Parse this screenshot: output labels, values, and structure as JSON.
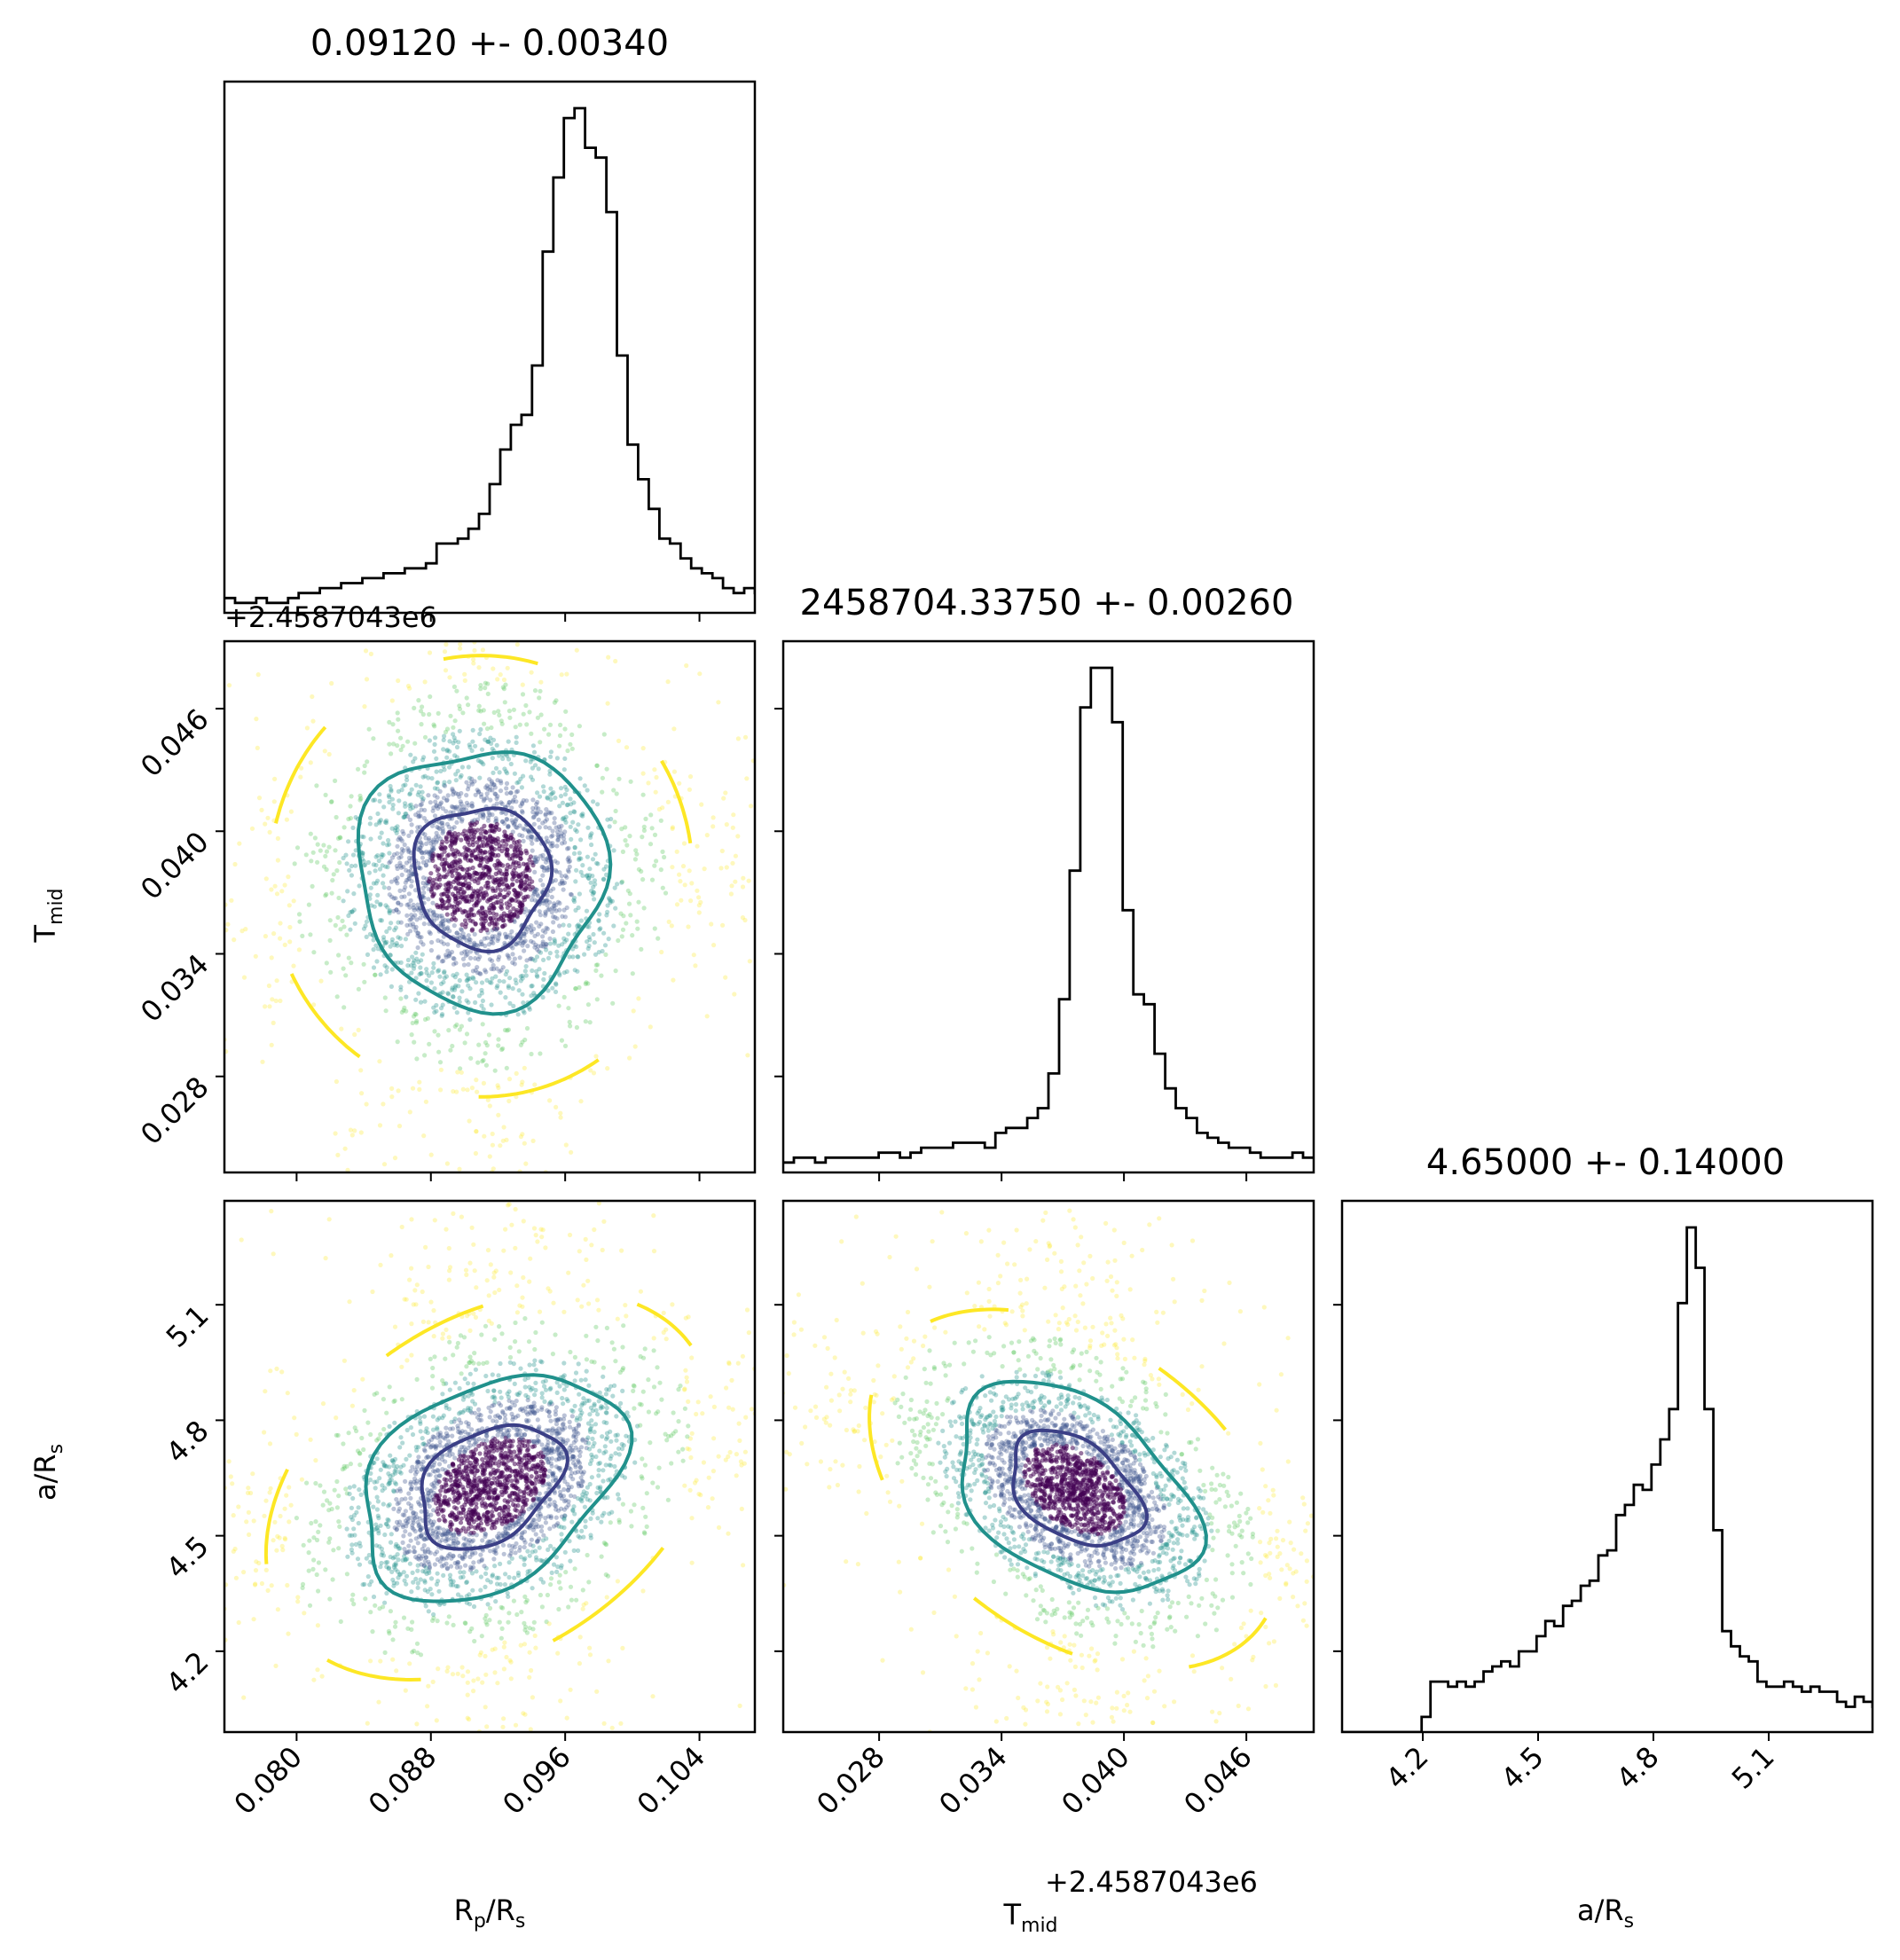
{
  "chart_data": {
    "type": "corner",
    "parameters": [
      {
        "key": "rp",
        "label": "R_p/R_s",
        "display_label_main": "R",
        "display_label_sub": "p",
        "display_label_tail": "/R",
        "display_label_sub2": "s"
      },
      {
        "key": "tmid",
        "label": "T_mid",
        "display_label_main": "T",
        "display_label_sub": "mid",
        "display_label_tail": "",
        "display_label_sub2": ""
      },
      {
        "key": "ars",
        "label": "a/R_s",
        "display_label_main": "a/R",
        "display_label_sub": "s",
        "display_label_tail": "",
        "display_label_sub2": ""
      }
    ],
    "titles": [
      "0.09120 +- 0.00340",
      "2458704.33750 +- 0.00260",
      "4.65000 +- 0.14000"
    ],
    "offset_text": "+2.4587043e6",
    "ranges": {
      "rp": [
        0.0757,
        0.1073
      ],
      "tmid": [
        0.0233,
        0.0493
      ],
      "ars": [
        3.99,
        5.37
      ]
    },
    "ticks": {
      "rp": [
        "0.080",
        "0.088",
        "0.096",
        "0.104"
      ],
      "tmid": [
        "0.028",
        "0.034",
        "0.040",
        "0.046"
      ],
      "ars": [
        "4.2",
        "4.5",
        "4.8",
        "5.1"
      ]
    },
    "tick_values": {
      "rp": [
        0.08,
        0.088,
        0.096,
        0.104
      ],
      "tmid": [
        0.028,
        0.034,
        0.04,
        0.046
      ],
      "ars": [
        4.2,
        4.5,
        4.8,
        5.1
      ]
    },
    "histograms": {
      "rp": {
        "bin_start": 0.0757,
        "bin_width": 0.000632,
        "counts": [
          3,
          2,
          2,
          3,
          2,
          2,
          3,
          4,
          4,
          5,
          5,
          6,
          6,
          7,
          7,
          8,
          8,
          9,
          9,
          10,
          14,
          14,
          15,
          17,
          20,
          26,
          33,
          38,
          40,
          50,
          73,
          88,
          100,
          102,
          94,
          92,
          81,
          52,
          34,
          27,
          21,
          15,
          14,
          11,
          9,
          8,
          7,
          5,
          4,
          5,
          4,
          4,
          3,
          3,
          3,
          3,
          3,
          3,
          2,
          2,
          3,
          3,
          4,
          4,
          3,
          2,
          2,
          3,
          2,
          2
        ]
      },
      "tmid": {
        "bin_start": 0.0233,
        "bin_width": 0.00052,
        "counts": [
          2,
          3,
          3,
          2,
          3,
          3,
          3,
          3,
          3,
          4,
          4,
          3,
          4,
          5,
          5,
          5,
          6,
          6,
          6,
          5,
          8,
          9,
          9,
          11,
          13,
          20,
          35,
          61,
          94,
          102,
          102,
          91,
          53,
          36,
          34,
          24,
          17,
          13,
          11,
          8,
          7,
          6,
          5,
          5,
          4,
          3,
          3,
          3,
          4,
          3
        ]
      },
      "ars": {
        "bin_start": 3.99,
        "bin_width": 0.023,
        "counts": [
          0,
          0,
          0,
          0,
          0,
          0,
          0,
          0,
          0,
          3,
          10,
          10,
          9,
          10,
          9,
          10,
          12,
          13,
          14,
          13,
          16,
          16,
          19,
          22,
          21,
          25,
          26,
          29,
          30,
          35,
          36,
          43,
          45,
          49,
          48,
          53,
          58,
          64,
          85,
          100,
          92,
          64,
          40,
          20,
          17,
          15,
          14,
          10,
          9,
          9,
          10,
          9,
          8,
          9,
          8,
          8,
          6,
          5,
          7,
          6,
          5,
          4,
          6,
          3,
          6,
          5,
          5,
          7,
          4,
          5
        ]
      }
    },
    "pairs": [
      {
        "x": "rp",
        "y": "tmid",
        "center": [
          0.091,
          0.0378
        ],
        "spread": [
          0.0035,
          0.003
        ],
        "correlation": 0.0
      },
      {
        "x": "rp",
        "y": "ars",
        "center": [
          0.0915,
          4.63
        ],
        "spread": [
          0.0037,
          0.14
        ],
        "correlation": 0.35
      },
      {
        "x": "tmid",
        "y": "ars",
        "center": [
          0.0376,
          4.62
        ],
        "spread": [
          0.0028,
          0.13
        ],
        "correlation": -0.4
      }
    ],
    "contour_colors": {
      "inner": "#3b3f86",
      "middle": "#21918c",
      "outer": "#fde725"
    },
    "point_colors": [
      "#440154",
      "#3b528b",
      "#21918c",
      "#5ec962",
      "#fde725"
    ],
    "grid": false,
    "legend": "none"
  }
}
